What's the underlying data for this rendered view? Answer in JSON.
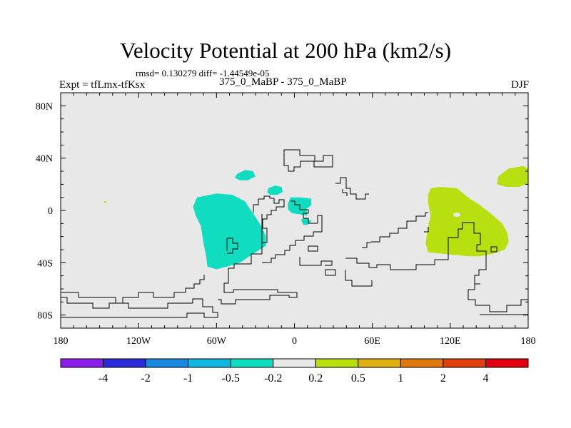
{
  "chart_data": {
    "type": "heatmap",
    "title": "Velocity Potential at 200 hPa (km2/s)",
    "stats": "rmsd= 0.130279 diff= -1.44549e-05",
    "left_label": "Expt = tfLmx-tfKsx",
    "center_label": "375_0_MaBP - 375_0_MaBP",
    "season": "DJF",
    "x_axis": {
      "range": [
        -180,
        180
      ],
      "ticks": [
        -180,
        -120,
        -60,
        0,
        60,
        120,
        180
      ],
      "tick_labels": [
        "180",
        "120W",
        "60W",
        "0",
        "60E",
        "120E",
        "180"
      ]
    },
    "y_axis": {
      "range": [
        -90,
        90
      ],
      "ticks": [
        -80,
        -40,
        0,
        40,
        80
      ],
      "tick_labels": [
        "80S",
        "40S",
        "0",
        "40N",
        "80N"
      ]
    },
    "colorbar": {
      "levels": [
        "-4",
        "-2",
        "-1",
        "-0.5",
        "-0.2",
        "0.2",
        "0.5",
        "1",
        "2",
        "4"
      ],
      "colors": [
        "#8a1ee6",
        "#2a2ad8",
        "#1a88e0",
        "#10b8e0",
        "#10dcc0",
        "#e8e8e8",
        "#b8e010",
        "#e0b010",
        "#e07810",
        "#e04010",
        "#e00010"
      ]
    },
    "regions": [
      {
        "name": "negative-anomaly-atlantic",
        "range": "-0.5 to -0.2",
        "color": "#10dcc0",
        "outline": [
          [
            -75,
            10
          ],
          [
            -60,
            13
          ],
          [
            -48,
            12
          ],
          [
            -38,
            7
          ],
          [
            -35,
            2
          ],
          [
            -32,
            -2
          ],
          [
            -28,
            -8
          ],
          [
            -25,
            -13
          ],
          [
            -22,
            -20
          ],
          [
            -22,
            -27
          ],
          [
            -30,
            -32
          ],
          [
            -42,
            -40
          ],
          [
            -52,
            -43
          ],
          [
            -60,
            -45
          ],
          [
            -67,
            -43
          ],
          [
            -68,
            -35
          ],
          [
            -70,
            -25
          ],
          [
            -72,
            -12
          ],
          [
            -76,
            -4
          ],
          [
            -78,
            3
          ]
        ]
      },
      {
        "name": "negative-anomaly-north-atlantic",
        "range": "-0.5 to -0.2",
        "color": "#10dcc0",
        "outline": [
          [
            -44,
            28
          ],
          [
            -38,
            31
          ],
          [
            -32,
            30
          ],
          [
            -30,
            26
          ],
          [
            -36,
            23
          ],
          [
            -42,
            23
          ],
          [
            -46,
            25
          ]
        ]
      },
      {
        "name": "negative-anomaly-africa-north",
        "range": "-0.5 to -0.2",
        "color": "#10dcc0",
        "outline": [
          [
            -20,
            17
          ],
          [
            -15,
            19
          ],
          [
            -10,
            18
          ],
          [
            -9,
            14
          ],
          [
            -13,
            12
          ],
          [
            -19,
            12
          ],
          [
            -21,
            14
          ]
        ]
      },
      {
        "name": "negative-anomaly-africa-east",
        "range": "-0.5 to -0.2",
        "color": "#10dcc0",
        "outline": [
          [
            -3,
            10
          ],
          [
            5,
            10
          ],
          [
            13,
            9
          ],
          [
            13,
            4
          ],
          [
            9,
            1
          ],
          [
            10,
            -4
          ],
          [
            4,
            -3
          ],
          [
            -2,
            -2
          ],
          [
            -5,
            1
          ],
          [
            -5,
            5
          ]
        ]
      },
      {
        "name": "negative-anomaly-africa-south",
        "range": "-0.5 to -0.2",
        "color": "#10dcc0",
        "outline": [
          [
            5,
            -7
          ],
          [
            9,
            -6
          ],
          [
            13,
            -8
          ],
          [
            10,
            -11
          ],
          [
            7,
            -11
          ]
        ]
      },
      {
        "name": "positive-anomaly-indo-pacific",
        "range": "0.2 to 0.5",
        "color": "#b8e010",
        "outline": [
          [
            105,
            17
          ],
          [
            112,
            18
          ],
          [
            125,
            17
          ],
          [
            130,
            13
          ],
          [
            135,
            9
          ],
          [
            143,
            4
          ],
          [
            152,
            -3
          ],
          [
            160,
            -10
          ],
          [
            164,
            -17
          ],
          [
            165,
            -24
          ],
          [
            162,
            -30
          ],
          [
            153,
            -33
          ],
          [
            143,
            -35
          ],
          [
            134,
            -35
          ],
          [
            123,
            -34
          ],
          [
            113,
            -33
          ],
          [
            103,
            -32
          ],
          [
            101,
            -25
          ],
          [
            103,
            -12
          ],
          [
            105,
            -4
          ],
          [
            103,
            5
          ],
          [
            103,
            12
          ]
        ]
      },
      {
        "name": "positive-anomaly-north-pacific",
        "range": "0.2 to 0.5",
        "color": "#b8e010",
        "outline": [
          [
            157,
            26
          ],
          [
            165,
            32
          ],
          [
            176,
            34
          ],
          [
            180,
            32
          ],
          [
            180,
            21
          ],
          [
            173,
            18
          ],
          [
            163,
            18
          ],
          [
            156,
            20
          ]
        ]
      }
    ]
  }
}
